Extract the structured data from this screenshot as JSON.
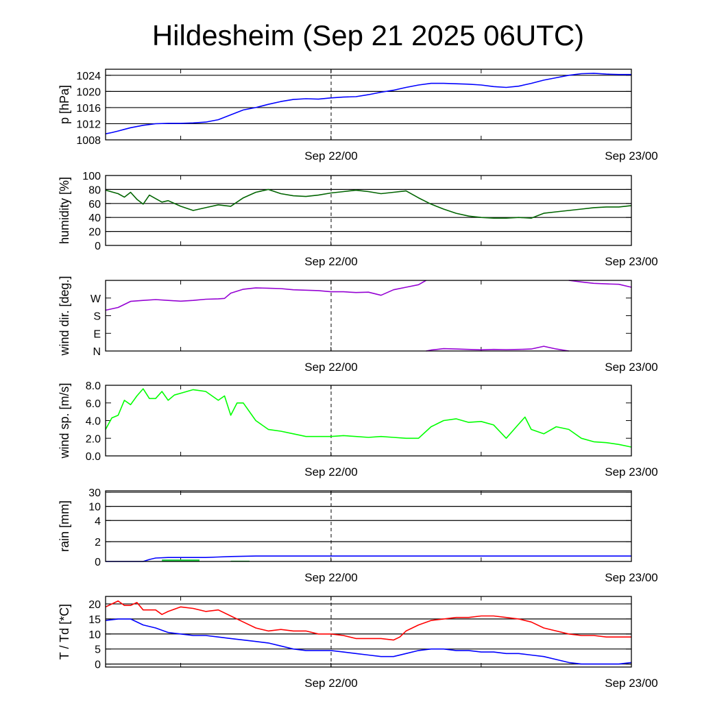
{
  "title": "Hildesheim (Sep 21 2025 06UTC)",
  "colors": {
    "pressure": "#0000ff",
    "humidity": "#006400",
    "wind_dir": "#9400d3",
    "wind_speed": "#00ff00",
    "rain_total": "#0000ff",
    "rain_bar": "#22cc44",
    "temperature": "#ff0000",
    "dewpoint": "#0000ff",
    "grid": "#000000",
    "frame": "#000000"
  },
  "chart_data": [
    {
      "type": "line",
      "ylabel": "p [hPa]",
      "ylim": [
        1008,
        1025.5
      ],
      "yticks": [
        1008,
        1012,
        1016,
        1020,
        1024
      ],
      "ytick_labels": [
        "1008",
        "1012",
        "1016",
        "1020",
        "1024"
      ],
      "grid": true,
      "x_tick_labels": [
        "Sep 22/00",
        "Sep 23/00"
      ],
      "x_range_hours": [
        6,
        48
      ],
      "series": [
        {
          "color_key": "pressure",
          "x": [
            6,
            6.5,
            7,
            7.5,
            8,
            9,
            10,
            11,
            12,
            13,
            14,
            15,
            16,
            17,
            18,
            19,
            20,
            21,
            22,
            23,
            24,
            25,
            26,
            27,
            28,
            29,
            30,
            31,
            32,
            33,
            34,
            35,
            36,
            37,
            38,
            39,
            40,
            41,
            42,
            43,
            44,
            45,
            46,
            47,
            48
          ],
          "y": [
            1009.5,
            1009.8,
            1010.2,
            1010.6,
            1011.0,
            1011.6,
            1012.0,
            1012.1,
            1012.1,
            1012.2,
            1012.4,
            1013.0,
            1014.2,
            1015.4,
            1016.0,
            1016.8,
            1017.5,
            1018.0,
            1018.2,
            1018.1,
            1018.4,
            1018.6,
            1018.7,
            1019.2,
            1019.8,
            1020.3,
            1021.0,
            1021.6,
            1022.0,
            1022.0,
            1021.9,
            1021.8,
            1021.6,
            1021.2,
            1021.0,
            1021.3,
            1022.0,
            1022.8,
            1023.4,
            1024.0,
            1024.4,
            1024.5,
            1024.3,
            1024.2,
            1024.2
          ]
        }
      ]
    },
    {
      "type": "line",
      "ylabel": "humidity [%]",
      "ylim": [
        0,
        100
      ],
      "yticks": [
        0,
        20,
        40,
        60,
        80,
        100
      ],
      "ytick_labels": [
        "0",
        "20",
        "40",
        "60",
        "80",
        "100"
      ],
      "grid": true,
      "x_tick_labels": [
        "Sep 22/00",
        "Sep 23/00"
      ],
      "x_range_hours": [
        6,
        48
      ],
      "series": [
        {
          "color_key": "humidity",
          "x": [
            6,
            7,
            7.5,
            8,
            8.5,
            9,
            9.5,
            10,
            10.5,
            11,
            12,
            13,
            14,
            15,
            16,
            17,
            18,
            19,
            20,
            21,
            22,
            23,
            24,
            25,
            26,
            27,
            28,
            29,
            30,
            31,
            32,
            33,
            34,
            35,
            36,
            37,
            38,
            39,
            40,
            41,
            42,
            43,
            44,
            45,
            46,
            47,
            48
          ],
          "y": [
            79,
            74,
            69,
            76,
            66,
            59,
            72,
            67,
            62,
            64,
            56,
            50,
            54,
            58,
            56,
            68,
            76,
            80,
            74,
            71,
            70,
            72,
            75,
            77,
            79,
            77,
            74,
            76,
            78,
            68,
            59,
            52,
            46,
            42,
            40,
            39,
            39,
            40,
            39,
            46,
            48,
            50,
            52,
            54,
            55,
            55,
            57
          ]
        }
      ]
    },
    {
      "type": "line",
      "ylabel": "wind dir. [deg.]",
      "ylim": [
        0,
        360
      ],
      "yticks": [
        0,
        90,
        180,
        270
      ],
      "ytick_labels": [
        "N",
        "E",
        "S",
        "W"
      ],
      "grid": false,
      "x_tick_labels": [
        "Sep 22/00",
        "Sep 23/00"
      ],
      "x_range_hours": [
        6,
        48
      ],
      "series": [
        {
          "color_key": "wind_dir",
          "x": [
            6,
            7,
            8,
            9,
            10,
            11,
            12,
            13,
            14,
            15,
            15.5,
            16,
            17,
            18,
            19,
            20,
            21,
            22,
            23,
            24,
            25,
            26,
            27,
            28,
            29,
            30,
            31,
            31.6
          ],
          "y": [
            208,
            222,
            253,
            258,
            262,
            258,
            254,
            258,
            264,
            266,
            268,
            295,
            315,
            322,
            320,
            318,
            312,
            310,
            308,
            302,
            302,
            298,
            300,
            284,
            312,
            325,
            338,
            360
          ]
        },
        {
          "color_key": "wind_dir",
          "x": [
            31.6,
            32,
            33,
            34,
            35,
            36,
            37,
            38,
            39,
            40,
            41,
            42,
            43
          ],
          "y": [
            0,
            5,
            12,
            10,
            8,
            6,
            8,
            7,
            8,
            10,
            24,
            10,
            0
          ]
        },
        {
          "color_key": "wind_dir",
          "x": [
            43,
            44,
            45,
            46,
            47,
            48
          ],
          "y": [
            360,
            352,
            345,
            342,
            340,
            325
          ]
        }
      ]
    },
    {
      "type": "line",
      "ylabel": "wind sp. [m/s]",
      "ylim": [
        0,
        8
      ],
      "yticks": [
        0,
        2,
        4,
        6,
        8
      ],
      "ytick_labels": [
        "0.0",
        "2.0",
        "4.0",
        "6.0",
        "8.0"
      ],
      "grid": false,
      "x_tick_labels": [
        "Sep 22/00",
        "Sep 23/00"
      ],
      "x_range_hours": [
        6,
        48
      ],
      "series": [
        {
          "color_key": "wind_speed",
          "x": [
            6,
            6.5,
            7,
            7.5,
            8,
            8.5,
            9,
            9.5,
            10,
            10.5,
            11,
            11.5,
            12,
            13,
            14,
            15,
            15.5,
            16,
            16.5,
            17,
            18,
            19,
            20,
            21,
            22,
            23,
            24,
            25,
            26,
            27,
            28,
            29,
            30,
            31,
            32,
            33,
            34,
            35,
            36,
            37,
            38,
            39,
            39.5,
            40,
            41,
            42,
            43,
            44,
            45,
            46,
            47,
            48
          ],
          "y": [
            3.0,
            4.3,
            4.6,
            6.3,
            5.8,
            6.8,
            7.6,
            6.5,
            6.5,
            7.3,
            6.3,
            6.9,
            7.1,
            7.5,
            7.3,
            6.3,
            6.8,
            4.6,
            6.0,
            6.0,
            4.0,
            3.0,
            2.8,
            2.5,
            2.2,
            2.2,
            2.2,
            2.3,
            2.2,
            2.1,
            2.2,
            2.1,
            2.0,
            2.0,
            3.3,
            4.0,
            4.2,
            3.8,
            3.9,
            3.5,
            2.0,
            3.6,
            4.4,
            3.0,
            2.5,
            3.3,
            3.0,
            2.0,
            1.6,
            1.5,
            1.3,
            1.0
          ]
        }
      ]
    },
    {
      "type": "line",
      "ylabel": "rain [mm]",
      "ylim": [
        0,
        30
      ],
      "yticks": [
        0,
        2,
        4,
        10,
        30
      ],
      "ytick_labels": [
        "0",
        "2",
        "4",
        "10",
        "30"
      ],
      "grid": true,
      "x_tick_labels": [
        "Sep 22/00",
        "Sep 23/00"
      ],
      "x_range_hours": [
        6,
        48
      ],
      "series": [
        {
          "color_key": "rain_total",
          "x": [
            6,
            9,
            9.5,
            10,
            11,
            12,
            13,
            14,
            15,
            16,
            18,
            20,
            22,
            24,
            30,
            36,
            42,
            48
          ],
          "y": [
            0,
            0,
            0.2,
            0.35,
            0.4,
            0.4,
            0.4,
            0.4,
            0.45,
            0.5,
            0.55,
            0.55,
            0.55,
            0.55,
            0.55,
            0.55,
            0.55,
            0.55
          ]
        }
      ],
      "bars": {
        "color_key": "rain_bar",
        "x_start": [
          10.5,
          16.0
        ],
        "x_end": [
          13.5,
          17.5
        ],
        "y": [
          0.2,
          0.08
        ]
      }
    },
    {
      "type": "line",
      "ylabel": "T / Td [*C]",
      "ylim": [
        -1,
        22.5
      ],
      "yticks": [
        0,
        5,
        10,
        15,
        20
      ],
      "ytick_labels": [
        "0",
        "5",
        "10",
        "15",
        "20"
      ],
      "grid": true,
      "x_tick_labels": [
        "Sep 22/00",
        "Sep 23/00"
      ],
      "x_range_hours": [
        6,
        48
      ],
      "series": [
        {
          "color_key": "temperature",
          "x": [
            6,
            6.5,
            7,
            7.5,
            8,
            8.5,
            9,
            10,
            10.5,
            11,
            12,
            13,
            14,
            15,
            16,
            17,
            18,
            19,
            20,
            21,
            22,
            23,
            24,
            25,
            26,
            27,
            28,
            29,
            29.5,
            30,
            31,
            32,
            33,
            34,
            35,
            36,
            37,
            38,
            39,
            40,
            41,
            42,
            43,
            44,
            45,
            46,
            47,
            48
          ],
          "y": [
            19,
            20,
            21,
            19.5,
            19.5,
            20.5,
            18,
            18,
            16.5,
            17.5,
            19,
            18.5,
            17.5,
            18,
            16,
            14,
            12,
            11,
            11.5,
            11,
            11,
            10,
            10,
            9.5,
            8.5,
            8.5,
            8.5,
            8,
            9,
            11,
            13,
            14.5,
            15,
            15.5,
            15.5,
            16,
            16,
            15.5,
            15,
            14,
            12,
            11,
            10,
            9.5,
            9.5,
            9,
            9,
            9
          ]
        },
        {
          "color_key": "dewpoint",
          "x": [
            6,
            7,
            8,
            9,
            10,
            11,
            12,
            13,
            14,
            15,
            16,
            17,
            18,
            19,
            20,
            21,
            22,
            23,
            24,
            25,
            26,
            27,
            28,
            29,
            30,
            31,
            32,
            33,
            34,
            35,
            36,
            37,
            38,
            39,
            40,
            41,
            42,
            43,
            44,
            45,
            46,
            47,
            48
          ],
          "y": [
            14.5,
            15,
            15,
            13,
            12,
            10.5,
            10,
            9.5,
            9.5,
            9,
            8.5,
            8,
            7.5,
            7,
            6,
            5,
            4.5,
            4.5,
            4.5,
            4,
            3.5,
            3,
            2.5,
            2.5,
            3.5,
            4.5,
            5,
            5,
            4.5,
            4.5,
            4,
            4,
            3.5,
            3.5,
            3,
            2.5,
            1.5,
            0.5,
            0,
            0,
            0,
            0,
            0.5
          ]
        }
      ]
    }
  ]
}
